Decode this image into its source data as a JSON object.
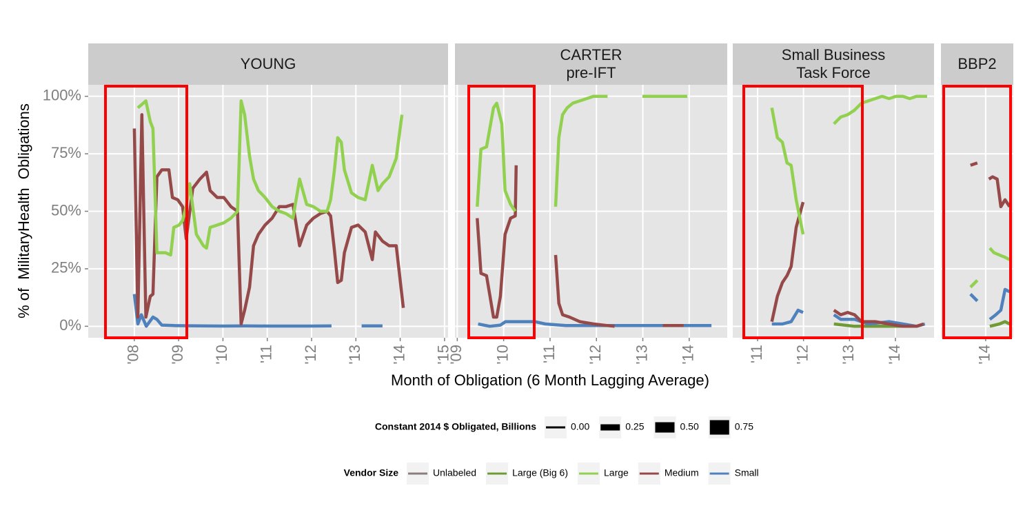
{
  "chart_data": {
    "type": "line",
    "y_label": "% of  MilitaryHealth  Obligations",
    "x_label": "Month of Obligation (6 Month Lagging Average)",
    "ylim": [
      -5,
      105
    ],
    "yticks": [
      {
        "value": 0,
        "label": "0%"
      },
      {
        "value": 25,
        "label": "25%"
      },
      {
        "value": 50,
        "label": "50%"
      },
      {
        "value": 75,
        "label": "75%"
      },
      {
        "value": 100,
        "label": "100%"
      }
    ],
    "grid": true,
    "size_legend": {
      "title": "Constant 2014 $ Obligated, Billions",
      "values": [
        {
          "value": 0,
          "label": "0.00"
        },
        {
          "value": 0.25,
          "label": "0.25"
        },
        {
          "value": 0.5,
          "label": "0.50"
        },
        {
          "value": 0.75,
          "label": "0.75"
        }
      ]
    },
    "legend": {
      "title": "Vendor Size",
      "position": "bottom",
      "items": [
        {
          "name": "Unlabeled",
          "color": "#8b7d7d"
        },
        {
          "name": "Large (Big 6)",
          "color": "#6f9a36"
        },
        {
          "name": "Large",
          "color": "#92d050"
        },
        {
          "name": "Medium",
          "color": "#954a49"
        },
        {
          "name": "Small",
          "color": "#4f81bd"
        }
      ]
    },
    "facets": [
      {
        "title": "YOUNG",
        "xlim": [
          2006.96,
          2015.08
        ],
        "xticks": [
          {
            "value": 2008,
            "label": "'08"
          },
          {
            "value": 2009,
            "label": "'09"
          },
          {
            "value": 2010,
            "label": "'10"
          },
          {
            "value": 2011,
            "label": "'11"
          },
          {
            "value": 2012,
            "label": "'12"
          },
          {
            "value": 2013,
            "label": "'13"
          },
          {
            "value": 2014,
            "label": "'14"
          },
          {
            "value": 2015,
            "label": "'15"
          }
        ],
        "series": [
          {
            "name": "Small",
            "x": [
              2008.0,
              2008.08,
              2008.16,
              2008.27,
              2008.42,
              2008.51,
              2008.62,
              2008.9,
              2009.5,
              2010.0,
              2010.5,
              2011.0,
              2011.5,
              2012.0,
              2012.45,
              2012.8,
              2013.13,
              2013.6
            ],
            "values": [
              14,
              1,
              5,
              0,
              4,
              3,
              0.5,
              0.3,
              0.2,
              0.1,
              0.2,
              0.1,
              0.1,
              0.1,
              0.2,
              null,
              0.2,
              0.2
            ]
          },
          {
            "name": "Medium",
            "x": [
              2008.0,
              2008.08,
              2008.17,
              2008.26,
              2008.36,
              2008.42,
              2008.51,
              2008.62,
              2008.78,
              2008.86,
              2008.98,
              2009.09,
              2009.17,
              2009.32,
              2009.48,
              2009.63,
              2009.71,
              2009.87,
              2010.02,
              2010.18,
              2010.33,
              2010.41,
              2010.49,
              2010.6,
              2010.69,
              2010.8,
              2010.95,
              2011.11,
              2011.27,
              2011.42,
              2011.58,
              2011.73,
              2011.89,
              2012.04,
              2012.2,
              2012.35,
              2012.43,
              2012.51,
              2012.59,
              2012.67,
              2012.74,
              2012.9,
              2013.05,
              2013.21,
              2013.37,
              2013.44,
              2013.6,
              2013.75,
              2013.91,
              2014.07,
              2014.3,
              2014.69
            ],
            "values": [
              86,
              4,
              92,
              4,
              13,
              14,
              65,
              68,
              68,
              56,
              55,
              52,
              38,
              60,
              64,
              67,
              59,
              56,
              56,
              52,
              50,
              1,
              7,
              17,
              35,
              40,
              44,
              47,
              52,
              52,
              53,
              35,
              44,
              47,
              49,
              50,
              48,
              34,
              19,
              20,
              32,
              43,
              44,
              41,
              29,
              41,
              37,
              35,
              35,
              8,
              null,
              0
            ]
          },
          {
            "name": "Large",
            "x": [
              2008.08,
              2008.26,
              2008.36,
              2008.42,
              2008.51,
              2008.7,
              2008.82,
              2008.89,
              2009.01,
              2009.09,
              2009.17,
              2009.25,
              2009.4,
              2009.56,
              2009.63,
              2009.71,
              2009.87,
              2010.02,
              2010.18,
              2010.33,
              2010.41,
              2010.49,
              2010.6,
              2010.69,
              2010.8,
              2010.95,
              2011.11,
              2011.27,
              2011.42,
              2011.58,
              2011.73,
              2011.89,
              2012.04,
              2012.2,
              2012.35,
              2012.43,
              2012.51,
              2012.59,
              2012.67,
              2012.74,
              2012.9,
              2013.05,
              2013.21,
              2013.37,
              2013.5,
              2013.6,
              2013.75,
              2013.91,
              2014.04,
              2014.3,
              2014.69
            ],
            "values": [
              95,
              98,
              89,
              86,
              32,
              32,
              31,
              43,
              44,
              46,
              52,
              62,
              40,
              35,
              34,
              43,
              44,
              45,
              47,
              50,
              98,
              92,
              74,
              64,
              59,
              56,
              52,
              50,
              49,
              47,
              64,
              53,
              52,
              50,
              50,
              55,
              67,
              82,
              80,
              68,
              58,
              56,
              55,
              70,
              59,
              62,
              65,
              73,
              92,
              null,
              100
            ]
          }
        ]
      },
      {
        "title": "CARTER\npre-IFT",
        "xlim": [
          2008.95,
          2014.82
        ],
        "xticks": [
          {
            "value": 2009,
            "label": "'09"
          },
          {
            "value": 2010,
            "label": "'10"
          },
          {
            "value": 2011,
            "label": "'11"
          },
          {
            "value": 2012,
            "label": "'12"
          },
          {
            "value": 2013,
            "label": "'13"
          },
          {
            "value": 2014,
            "label": "'14"
          }
        ],
        "series": [
          {
            "name": "Small",
            "x": [
              2009.45,
              2009.7,
              2009.93,
              2010.04,
              2010.22,
              2010.45,
              2010.67,
              2010.9,
              2011.34,
              2011.94,
              2012.54,
              2013.13,
              2013.73,
              2014.48
            ],
            "values": [
              1,
              0,
              0.5,
              2,
              2,
              2,
              2,
              1,
              0.3,
              0.3,
              0.3,
              0.3,
              0.3,
              0.3
            ]
          },
          {
            "name": "Medium",
            "x": [
              2009.43,
              2009.51,
              2009.63,
              2009.78,
              2009.85,
              2009.93,
              2010.03,
              2010.15,
              2010.25,
              2010.27,
              2010.6,
              2011.12,
              2011.19,
              2011.27,
              2011.42,
              2011.64,
              2011.94,
              2012.24,
              2012.39,
              2013.0,
              2013.43,
              2013.88
            ],
            "values": [
              47,
              23,
              22,
              4,
              4,
              13,
              40,
              47,
              48,
              70,
              null,
              31,
              10,
              5,
              4,
              2,
              1,
              0.3,
              0,
              null,
              0.3,
              0.3
            ]
          },
          {
            "name": "Large",
            "x": [
              2009.43,
              2009.51,
              2009.63,
              2009.78,
              2009.85,
              2009.96,
              2010.03,
              2010.15,
              2010.25,
              2010.6,
              2011.12,
              2011.19,
              2011.27,
              2011.37,
              2011.49,
              2011.64,
              2011.79,
              2011.94,
              2012.09,
              2012.24,
              2012.6,
              2012.99,
              2013.13,
              2013.43,
              2013.73,
              2013.96,
              2014.2,
              2014.55
            ],
            "values": [
              52,
              77,
              78,
              95,
              97,
              88,
              59,
              53,
              50,
              null,
              52,
              82,
              92,
              95,
              97,
              98,
              99,
              100,
              100,
              100,
              null,
              100,
              100,
              100,
              100,
              100,
              null,
              100
            ]
          }
        ]
      },
      {
        "title": "Small Business\nTask Force",
        "xlim": [
          2010.46,
          2014.84
        ],
        "xticks": [
          {
            "value": 2011,
            "label": "'11"
          },
          {
            "value": 2012,
            "label": "'12"
          },
          {
            "value": 2013,
            "label": "'13"
          },
          {
            "value": 2014,
            "label": "'14"
          }
        ],
        "series": [
          {
            "name": "Large (Big 6)",
            "x": [
              2012.66,
              2013.11,
              2013.71,
              2014.31
            ],
            "values": [
              1,
              0,
              0,
              0
            ]
          },
          {
            "name": "Small",
            "x": [
              2011.31,
              2011.54,
              2011.73,
              2011.88,
              2011.99,
              2012.3,
              2012.66,
              2012.81,
              2013.11,
              2013.41,
              2013.86,
              2014.16,
              2014.46,
              2014.64
            ],
            "values": [
              1,
              1,
              2,
              7,
              6,
              null,
              5,
              3,
              3,
              1,
              2,
              1,
              0,
              1
            ]
          },
          {
            "name": "Medium",
            "x": [
              2011.31,
              2011.43,
              2011.54,
              2011.64,
              2011.73,
              2011.84,
              2011.99,
              2012.3,
              2012.66,
              2012.81,
              2012.96,
              2013.11,
              2013.26,
              2013.56,
              2013.86,
              2014.16,
              2014.46,
              2014.61
            ],
            "values": [
              2,
              13,
              19,
              22,
              26,
              43,
              54,
              null,
              7,
              5,
              6,
              5,
              2,
              2,
              1,
              0,
              0,
              1
            ]
          },
          {
            "name": "Large",
            "x": [
              2011.31,
              2011.43,
              2011.54,
              2011.64,
              2011.73,
              2011.84,
              2011.99,
              2012.3,
              2012.66,
              2012.81,
              2012.96,
              2013.11,
              2013.26,
              2013.41,
              2013.56,
              2013.71,
              2013.86,
              2014.01,
              2014.16,
              2014.31,
              2014.46,
              2014.69
            ],
            "values": [
              95,
              82,
              80,
              71,
              70,
              55,
              40,
              null,
              88,
              91,
              92,
              94,
              97,
              98,
              99,
              100,
              99,
              100,
              100,
              99,
              100,
              100
            ]
          }
        ]
      },
      {
        "title": "BBP2",
        "xlim": [
          2013.03,
          2014.6
        ],
        "xticks": [
          {
            "value": 2014,
            "label": "'14"
          }
        ],
        "series": [
          {
            "name": "Large (Big 6)",
            "x": [
              2014.09,
              2014.3,
              2014.42,
              2014.52
            ],
            "values": [
              0,
              1,
              2,
              1
            ]
          },
          {
            "name": "Small",
            "x": [
              2013.67,
              2013.82,
              2013.95,
              2014.09,
              2014.22,
              2014.33,
              2014.42,
              2014.52
            ],
            "values": [
              14,
              11,
              null,
              3,
              5,
              7,
              16,
              15
            ]
          },
          {
            "name": "Large",
            "x": [
              2013.67,
              2013.82,
              2013.95,
              2014.09,
              2014.18,
              2014.3,
              2014.42,
              2014.52
            ],
            "values": [
              17,
              20,
              null,
              34,
              32,
              31,
              30,
              29
            ]
          },
          {
            "name": "Medium",
            "x": [
              2013.67,
              2013.82,
              2013.95,
              2014.07,
              2014.15,
              2014.25,
              2014.33,
              2014.42,
              2014.52
            ],
            "values": [
              70,
              71,
              null,
              64,
              65,
              64,
              52,
              55,
              52
            ]
          }
        ]
      }
    ]
  }
}
